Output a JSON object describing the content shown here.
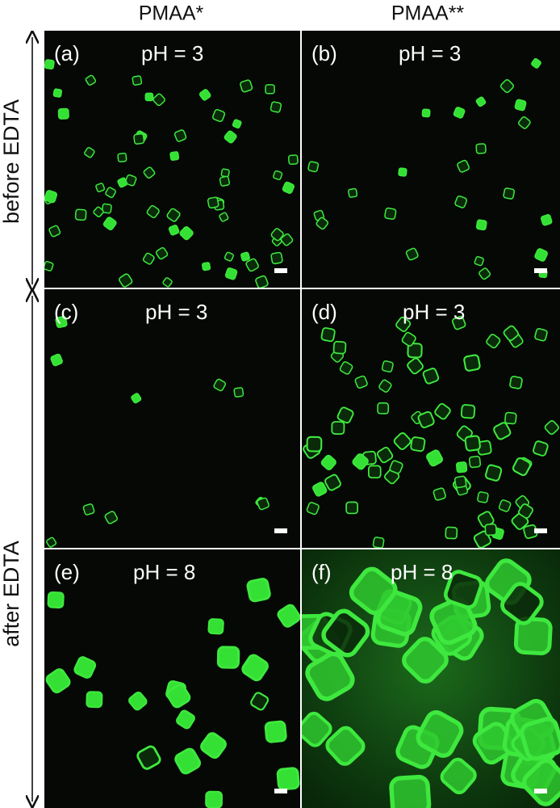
{
  "columns": [
    "PMAA*",
    "PMAA**"
  ],
  "rows": [
    "before EDTA",
    "after EDTA"
  ],
  "panels": [
    {
      "label": "(a)",
      "condition": "pH = 3"
    },
    {
      "label": "(b)",
      "condition": "pH = 3"
    },
    {
      "label": "(c)",
      "condition": "pH = 3"
    },
    {
      "label": "(d)",
      "condition": "pH = 3"
    },
    {
      "label": "(e)",
      "condition": "pH = 8"
    },
    {
      "label": "(f)",
      "condition": "pH = 8"
    }
  ]
}
